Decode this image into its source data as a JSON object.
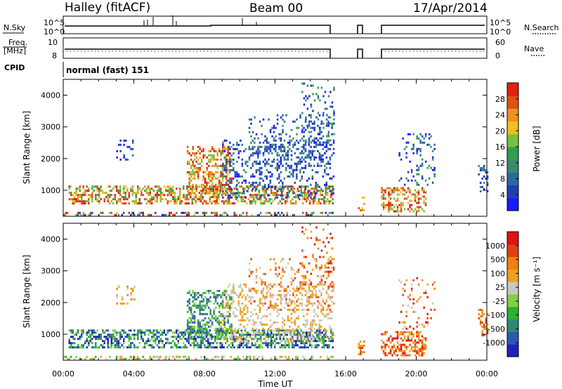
{
  "header": {
    "station": "Halley (fitACF)",
    "beam": "Beam 00",
    "date": "17/Apr/2014"
  },
  "top_panels": {
    "nsky_label": "N.Sky",
    "nsearch_label": "N.Search",
    "nsky_ticks": [
      "10^5",
      "10^0"
    ],
    "nsearch_ticks": [
      "10^5",
      "10^0"
    ],
    "freq_label_1": "Freq.",
    "freq_label_2": "[MHz]",
    "freq_ticks": [
      "10",
      "8"
    ],
    "nave_label": "Nave",
    "nave_ticks": [
      "60",
      "0"
    ],
    "cpid_label": "CPID",
    "cpid_value": "normal (fast) 151"
  },
  "colors": {
    "power_scale": [
      "#1a1aff",
      "#2040b0",
      "#2a6aa0",
      "#3a8a70",
      "#2ea050",
      "#7ac040",
      "#f0c020",
      "#f09020",
      "#e05010",
      "#e02010"
    ],
    "velocity_scale": [
      "#2020c0",
      "#2a5ab0",
      "#2e8a70",
      "#30b030",
      "#80d040",
      "#c8c8c0",
      "#f0a020",
      "#f08010",
      "#e04010",
      "#e01010"
    ],
    "gate_fill": "#ffffff"
  },
  "chart_data": [
    {
      "type": "heatmap",
      "title": "",
      "ylabel": "Slant Range [km]",
      "xlabel": "",
      "x_ticks": [
        "00:00",
        "04:00",
        "08:00",
        "12:00",
        "16:00",
        "20:00",
        "00:00"
      ],
      "xlim_hours": [
        0,
        24
      ],
      "y_ticks": [
        1000,
        2000,
        3000,
        4000
      ],
      "ylim_km": [
        180,
        4500
      ],
      "colorbar": {
        "label": "Power [dB]",
        "ticks": [
          4,
          8,
          12,
          16,
          20,
          24,
          28
        ],
        "range": [
          0,
          32
        ]
      },
      "data_gaps_hours": [
        [
          15.3,
          16.7
        ],
        [
          17.0,
          18.0
        ]
      ]
    },
    {
      "type": "heatmap",
      "title": "",
      "ylabel": "Slant Range [km]",
      "xlabel": "Time UT",
      "x_ticks": [
        "00:00",
        "04:00",
        "08:00",
        "12:00",
        "16:00",
        "20:00",
        "00:00"
      ],
      "xlim_hours": [
        0,
        24
      ],
      "y_ticks": [
        1000,
        2000,
        3000,
        4000
      ],
      "ylim_km": [
        180,
        4500
      ],
      "colorbar": {
        "label": "Velocity [m s⁻¹]",
        "ticks": [
          "1000",
          "500",
          "100",
          "25",
          "-25",
          "-100",
          "-500",
          "-1000"
        ]
      },
      "data_gaps_hours": [
        [
          15.3,
          16.7
        ],
        [
          17.0,
          18.0
        ]
      ]
    }
  ]
}
